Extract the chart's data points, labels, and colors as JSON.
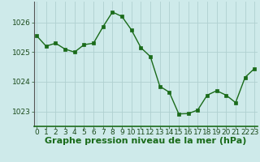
{
  "x": [
    0,
    1,
    2,
    3,
    4,
    5,
    6,
    7,
    8,
    9,
    10,
    11,
    12,
    13,
    14,
    15,
    16,
    17,
    18,
    19,
    20,
    21,
    22,
    23
  ],
  "y": [
    1025.55,
    1025.2,
    1025.3,
    1025.1,
    1025.0,
    1025.25,
    1025.3,
    1025.85,
    1026.35,
    1026.2,
    1025.75,
    1025.15,
    1024.85,
    1023.85,
    1023.65,
    1022.92,
    1022.93,
    1023.05,
    1023.55,
    1023.7,
    1023.55,
    1023.3,
    1024.15,
    1024.45
  ],
  "line_color": "#1a6b1a",
  "marker": "s",
  "marker_size": 2.5,
  "bg_color": "#ceeaea",
  "grid_color": "#b0d0d0",
  "xlabel": "Graphe pression niveau de la mer (hPa)",
  "xlabel_fontsize": 8,
  "yticks": [
    1023,
    1024,
    1025,
    1026
  ],
  "xticks": [
    0,
    1,
    2,
    3,
    4,
    5,
    6,
    7,
    8,
    9,
    10,
    11,
    12,
    13,
    14,
    15,
    16,
    17,
    18,
    19,
    20,
    21,
    22,
    23
  ],
  "ylim": [
    1022.5,
    1026.7
  ],
  "xlim": [
    -0.3,
    23.3
  ],
  "tick_fontsize": 6.5,
  "spine_color": "#336633"
}
